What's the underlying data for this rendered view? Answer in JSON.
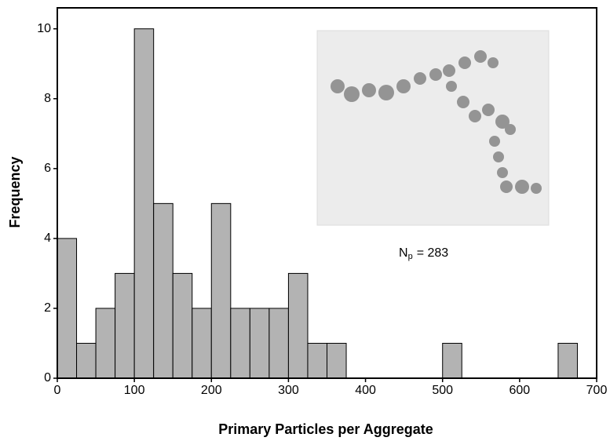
{
  "chart_data": {
    "type": "histogram",
    "xlabel": "Primary Particles per Aggregate",
    "ylabel": "Frequency",
    "annotation": {
      "symbol": "N",
      "subscript": "p",
      "text": "= 283"
    },
    "bins": [
      0,
      25,
      50,
      75,
      100,
      125,
      150,
      175,
      200,
      225,
      250,
      275,
      300,
      325,
      350,
      375,
      400,
      425,
      450,
      475,
      500,
      525,
      550,
      575,
      600,
      625,
      650,
      675
    ],
    "counts": [
      4,
      1,
      2,
      3,
      10,
      5,
      3,
      2,
      5,
      2,
      2,
      2,
      3,
      1,
      1,
      0,
      0,
      0,
      0,
      0,
      1,
      0,
      0,
      0,
      0,
      0,
      1
    ],
    "color": "#b3b3b3",
    "xlim": [
      0,
      700
    ],
    "xticks": [
      0,
      100,
      200,
      300,
      400,
      500,
      600,
      700
    ],
    "ylim": [
      0,
      10.6
    ],
    "yticks": [
      0,
      2,
      4,
      6,
      8,
      10
    ]
  }
}
